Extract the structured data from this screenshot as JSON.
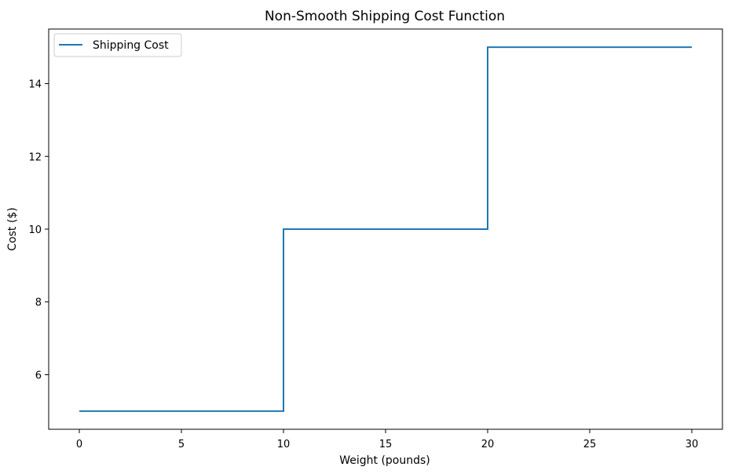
{
  "chart_data": {
    "type": "line",
    "drawstyle": "steps-post",
    "title": "Non-Smooth Shipping Cost Function",
    "xlabel": "Weight (pounds)",
    "ylabel": "Cost ($)",
    "xlim": [
      -1.5,
      31.5
    ],
    "ylim": [
      4.5,
      15.5
    ],
    "xticks": [
      0,
      5,
      10,
      15,
      20,
      25,
      30
    ],
    "yticks": [
      6,
      8,
      10,
      12,
      14
    ],
    "grid": false,
    "legend_position": "upper-left",
    "series": [
      {
        "name": "Shipping Cost",
        "color": "#1f77b4",
        "x": [
          0,
          10,
          20,
          30
        ],
        "y": [
          5,
          10,
          15,
          15
        ]
      }
    ]
  }
}
